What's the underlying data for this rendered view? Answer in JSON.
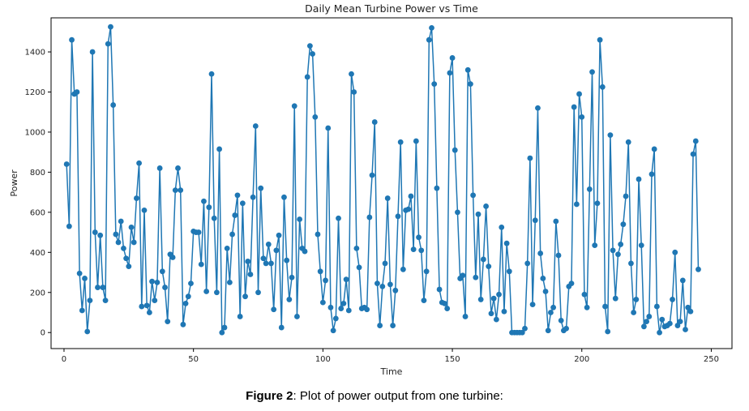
{
  "caption": {
    "label": "Figure 2",
    "text": ": Plot of power output from one turbine:"
  },
  "chart_data": {
    "type": "line",
    "title": "Daily Mean Turbine Power vs Time",
    "xlabel": "Time",
    "ylabel": "Power",
    "xlim": [
      -5,
      258
    ],
    "ylim": [
      -80,
      1570
    ],
    "xticks": [
      0,
      50,
      100,
      150,
      200,
      250
    ],
    "yticks": [
      0,
      200,
      400,
      600,
      800,
      1000,
      1200,
      1400
    ],
    "grid": false,
    "legend": "none",
    "line_color": "#1f77b4",
    "marker": "circle",
    "series": [
      {
        "x": [
          1,
          2,
          3,
          4,
          5,
          6,
          7,
          8,
          9,
          10,
          11,
          12,
          13,
          14,
          15,
          16,
          17,
          18,
          19,
          20,
          21,
          22,
          23,
          24,
          25,
          26,
          27,
          28,
          29,
          30,
          31,
          32,
          33,
          34,
          35,
          36,
          37,
          38,
          39,
          40,
          41,
          42,
          43,
          44,
          45,
          46,
          47,
          48,
          49,
          50,
          51,
          52,
          53,
          54,
          55,
          56,
          57,
          58,
          59,
          60,
          61,
          62,
          63,
          64,
          65,
          66,
          67,
          68,
          69,
          70,
          71,
          72,
          73,
          74,
          75,
          76,
          77,
          78,
          79,
          80,
          81,
          82,
          83,
          84,
          85,
          86,
          87,
          88,
          89,
          90,
          91,
          92,
          93,
          94,
          95,
          96,
          97,
          98,
          99,
          100,
          101,
          102,
          103,
          104,
          105,
          106,
          107,
          108,
          109,
          110,
          111,
          112,
          113,
          114,
          115,
          116,
          117,
          118,
          119,
          120,
          121,
          122,
          123,
          124,
          125,
          126,
          127,
          128,
          129,
          130,
          131,
          132,
          133,
          134,
          135,
          136,
          137,
          138,
          139,
          140,
          141,
          142,
          143,
          144,
          145,
          146,
          147,
          148,
          149,
          150,
          151,
          152,
          153,
          154,
          155,
          156,
          157,
          158,
          159,
          160,
          161,
          162,
          163,
          164,
          165,
          166,
          167,
          168,
          169,
          170,
          171,
          172,
          173,
          174,
          175,
          176,
          177,
          178,
          179,
          180,
          181,
          182,
          183,
          184,
          185,
          186,
          187,
          188,
          189,
          190,
          191,
          192,
          193,
          194,
          195,
          196,
          197,
          198,
          199,
          200,
          201,
          202,
          203,
          204,
          205,
          206,
          207,
          208,
          209,
          210,
          211,
          212,
          213,
          214,
          215,
          216,
          217,
          218,
          219,
          220,
          221,
          222,
          223,
          224,
          225,
          226,
          227,
          228,
          229,
          230,
          231,
          232,
          233,
          234,
          235,
          236,
          237,
          238,
          239,
          240,
          241,
          242,
          243,
          244,
          245
        ],
        "y": [
          840,
          530,
          1460,
          1190,
          1200,
          295,
          110,
          270,
          5,
          160,
          1400,
          500,
          225,
          485,
          225,
          160,
          1440,
          1525,
          1135,
          490,
          450,
          555,
          420,
          370,
          330,
          525,
          450,
          670,
          845,
          130,
          610,
          135,
          100,
          255,
          160,
          250,
          820,
          305,
          225,
          55,
          390,
          375,
          710,
          820,
          710,
          40,
          145,
          180,
          245,
          505,
          500,
          500,
          340,
          655,
          205,
          625,
          1290,
          570,
          200,
          915,
          0,
          25,
          420,
          250,
          490,
          585,
          685,
          80,
          645,
          180,
          355,
          290,
          675,
          1030,
          200,
          720,
          370,
          345,
          440,
          345,
          115,
          410,
          485,
          25,
          675,
          360,
          165,
          275,
          1130,
          80,
          565,
          420,
          405,
          1275,
          1430,
          1390,
          1075,
          490,
          305,
          150,
          260,
          1020,
          125,
          10,
          70,
          570,
          120,
          145,
          265,
          110,
          1290,
          1200,
          420,
          325,
          120,
          125,
          115,
          575,
          785,
          1050,
          245,
          35,
          230,
          345,
          670,
          240,
          35,
          210,
          580,
          950,
          315,
          610,
          615,
          680,
          415,
          955,
          475,
          410,
          160,
          305,
          1460,
          1520,
          1240,
          720,
          215,
          150,
          145,
          120,
          1295,
          1370,
          910,
          600,
          270,
          285,
          80,
          1310,
          1240,
          685,
          275,
          590,
          165,
          365,
          630,
          330,
          95,
          170,
          65,
          190,
          525,
          105,
          445,
          305,
          0,
          0,
          0,
          0,
          0,
          20,
          345,
          870,
          140,
          560,
          1120,
          395,
          270,
          205,
          10,
          100,
          125,
          555,
          385,
          60,
          10,
          20,
          230,
          245,
          1125,
          640,
          1190,
          1075,
          190,
          125,
          715,
          1300,
          435,
          645,
          1460,
          1225,
          130,
          5,
          985,
          410,
          170,
          390,
          440,
          540,
          680,
          950,
          345,
          100,
          165,
          765,
          435,
          30,
          55,
          80,
          790,
          915,
          130,
          0,
          65,
          30,
          35,
          45,
          165,
          400,
          35,
          55,
          260,
          15,
          125,
          105,
          890,
          955,
          315
        ]
      }
    ]
  }
}
